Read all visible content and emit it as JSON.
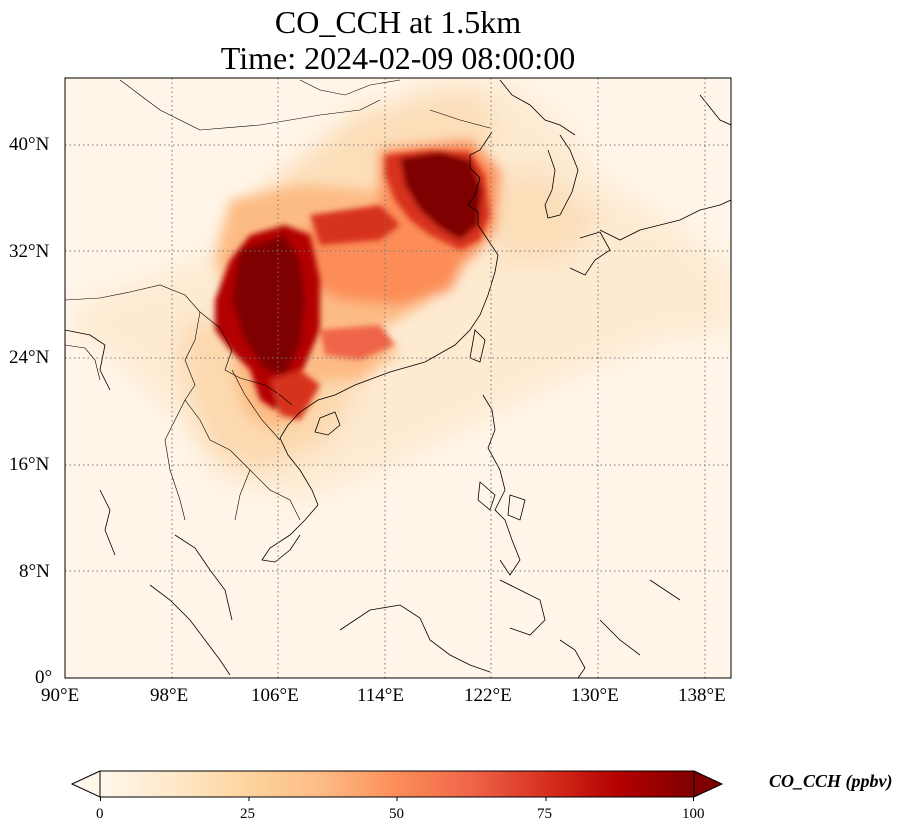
{
  "title": "CO_CCH at 1.5km",
  "subtitle": "Time: 2024-02-09 08:00:00",
  "map": {
    "variable": "CO_CCH",
    "projection": "PlateCarree",
    "lon_range": [
      90,
      140
    ],
    "lat_range": [
      0,
      45
    ],
    "gridlines": true,
    "gridline_style": "dotted",
    "x_ticks": [
      "90°E",
      "98°E",
      "106°E",
      "114°E",
      "122°E",
      "130°E",
      "138°E"
    ],
    "y_ticks": [
      "0°",
      "8°N",
      "16°N",
      "24°N",
      "32°N",
      "40°N"
    ],
    "colormap": "OrRd",
    "colors": [
      "#fff7ec",
      "#fee8c8",
      "#fdd49e",
      "#fdbb84",
      "#fc8d59",
      "#ef6548",
      "#d7301f",
      "#b30000",
      "#7f0000"
    ]
  },
  "colorbar": {
    "label": "CO_CCH (ppbv)",
    "ticks": [
      "0",
      "25",
      "50",
      "75",
      "100"
    ],
    "range": [
      0,
      100
    ],
    "extend": "both"
  }
}
